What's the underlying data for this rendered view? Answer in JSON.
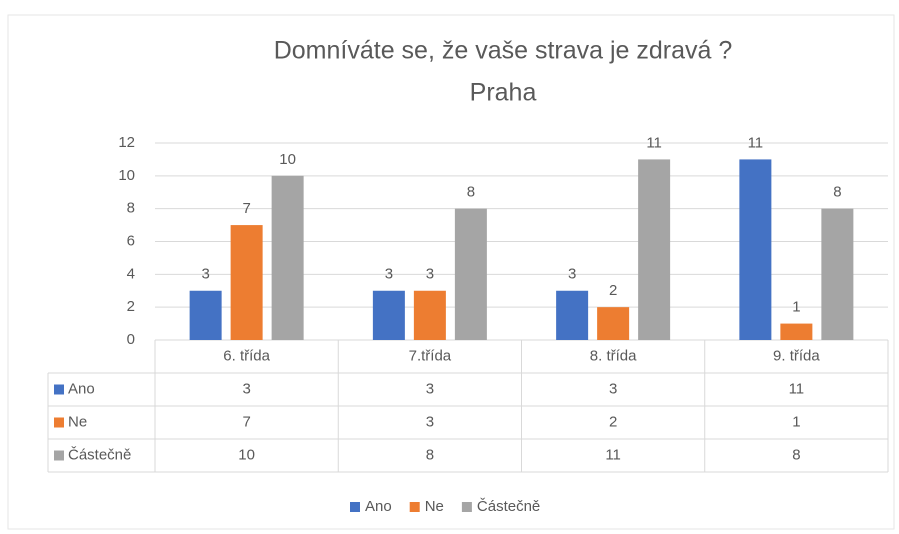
{
  "chart_data": {
    "type": "bar",
    "title": "Domníváte se, že vaše strava je zdravá ?",
    "subtitle": "Praha",
    "categories": [
      "6. třída",
      "7.třída",
      "8. třída",
      "9. třída"
    ],
    "series": [
      {
        "name": "Ano",
        "color": "#4472c4",
        "values": [
          3,
          3,
          3,
          11
        ]
      },
      {
        "name": "Ne",
        "color": "#ed7d31",
        "values": [
          7,
          3,
          2,
          1
        ]
      },
      {
        "name": "Částečně",
        "color": "#a5a5a5",
        "values": [
          10,
          8,
          11,
          8
        ]
      }
    ],
    "ylim": [
      0,
      12
    ],
    "yticks": [
      0,
      2,
      4,
      6,
      8,
      10,
      12
    ],
    "grid": true,
    "legend": "bottom"
  }
}
